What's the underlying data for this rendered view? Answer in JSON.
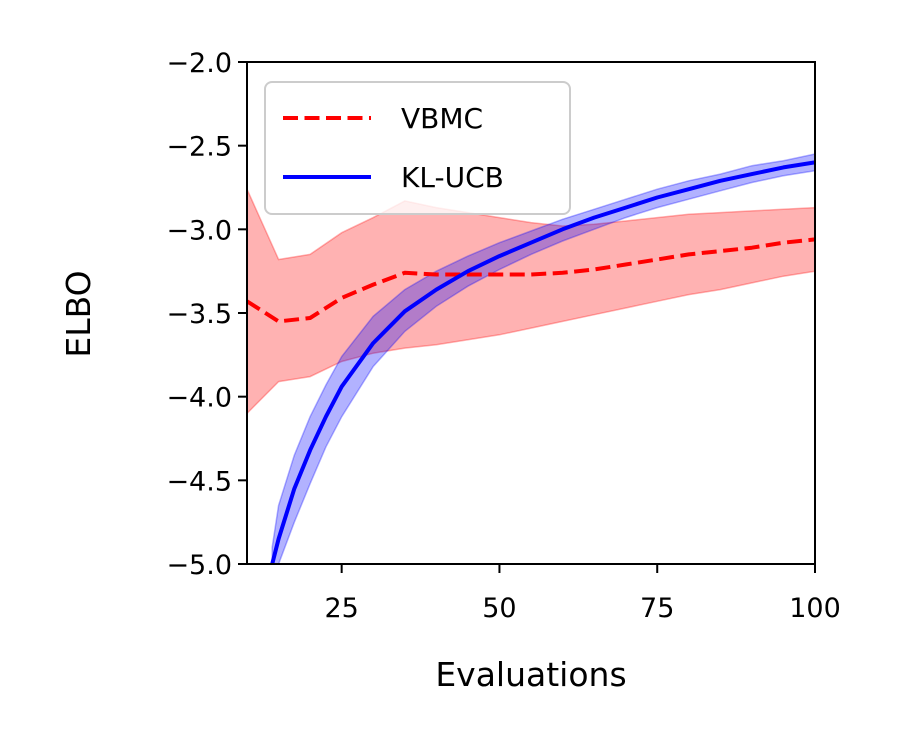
{
  "chart_data": {
    "type": "line",
    "xlabel": "Evaluations",
    "ylabel": "ELBO",
    "xlim": [
      10,
      100
    ],
    "ylim": [
      -5.0,
      -2.0
    ],
    "xticks": [
      25,
      50,
      75,
      100
    ],
    "xtick_labels": [
      "25",
      "50",
      "75",
      "100"
    ],
    "yticks": [
      -2.0,
      -2.5,
      -3.0,
      -3.5,
      -4.0,
      -4.5,
      -5.0
    ],
    "ytick_labels": [
      "−2.0",
      "−2.5",
      "−3.0",
      "−3.5",
      "−4.0",
      "−4.5",
      "−5.0"
    ],
    "grid": false,
    "legend_position": "top-left",
    "series": [
      {
        "name": "VBMC",
        "color": "#ff0000",
        "line_style": "dashed",
        "x": [
          10,
          15,
          20,
          25,
          30,
          35,
          40,
          45,
          50,
          55,
          60,
          65,
          70,
          75,
          80,
          85,
          90,
          95,
          100
        ],
        "y": [
          -3.43,
          -3.55,
          -3.53,
          -3.41,
          -3.33,
          -3.26,
          -3.27,
          -3.27,
          -3.27,
          -3.27,
          -3.26,
          -3.24,
          -3.21,
          -3.18,
          -3.15,
          -3.13,
          -3.11,
          -3.08,
          -3.06
        ],
        "lower": [
          -4.1,
          -3.91,
          -3.88,
          -3.79,
          -3.74,
          -3.71,
          -3.69,
          -3.66,
          -3.63,
          -3.59,
          -3.55,
          -3.51,
          -3.47,
          -3.43,
          -3.39,
          -3.36,
          -3.32,
          -3.28,
          -3.25
        ],
        "upper": [
          -2.76,
          -3.18,
          -3.15,
          -3.02,
          -2.93,
          -2.83,
          -2.87,
          -2.9,
          -2.93,
          -2.96,
          -2.98,
          -2.97,
          -2.95,
          -2.93,
          -2.91,
          -2.9,
          -2.89,
          -2.88,
          -2.87
        ]
      },
      {
        "name": "KL-UCB",
        "color": "#0000ff",
        "line_style": "solid",
        "x": [
          14,
          15,
          17.5,
          20,
          22.5,
          25,
          30,
          35,
          40,
          45,
          50,
          55,
          60,
          65,
          70,
          75,
          80,
          85,
          90,
          95,
          100
        ],
        "y": [
          -5.0,
          -4.85,
          -4.55,
          -4.32,
          -4.12,
          -3.94,
          -3.68,
          -3.49,
          -3.36,
          -3.25,
          -3.16,
          -3.08,
          -3.0,
          -2.93,
          -2.87,
          -2.81,
          -2.76,
          -2.71,
          -2.67,
          -2.63,
          -2.6
        ],
        "lower": [
          -5.0,
          -5.0,
          -4.75,
          -4.52,
          -4.3,
          -4.12,
          -3.82,
          -3.61,
          -3.46,
          -3.34,
          -3.24,
          -3.15,
          -3.07,
          -3.0,
          -2.93,
          -2.87,
          -2.82,
          -2.77,
          -2.72,
          -2.68,
          -2.65
        ],
        "upper": [
          -4.9,
          -4.65,
          -4.35,
          -4.12,
          -3.93,
          -3.76,
          -3.52,
          -3.36,
          -3.25,
          -3.16,
          -3.08,
          -3.01,
          -2.94,
          -2.88,
          -2.82,
          -2.76,
          -2.71,
          -2.67,
          -2.62,
          -2.59,
          -2.55
        ]
      }
    ]
  }
}
